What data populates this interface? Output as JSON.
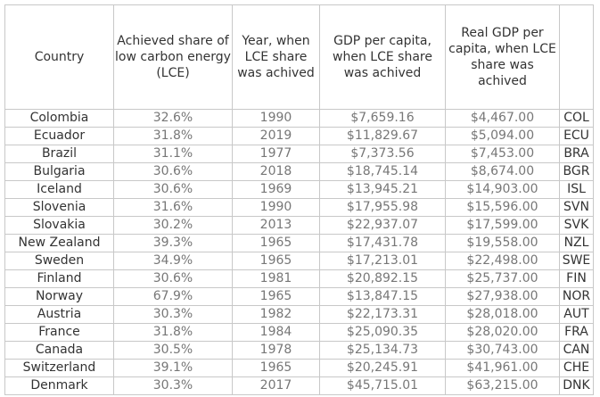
{
  "table": {
    "columns": [
      "Country",
      "Achieved share of low carbon energy (LCE)",
      "Year, when LCE share was achived",
      "GDP per capita, when LCE share was achived",
      "Real GDP per capita, when LCE share was achived",
      ""
    ],
    "rows": [
      {
        "country": "Colombia",
        "share": "32.6%",
        "year": "1990",
        "gdp": "$7,659.16",
        "real_gdp": "$4,467.00",
        "code": "COL"
      },
      {
        "country": "Ecuador",
        "share": "31.8%",
        "year": "2019",
        "gdp": "$11,829.67",
        "real_gdp": "$5,094.00",
        "code": "ECU"
      },
      {
        "country": "Brazil",
        "share": "31.1%",
        "year": "1977",
        "gdp": "$7,373.56",
        "real_gdp": "$7,453.00",
        "code": "BRA"
      },
      {
        "country": "Bulgaria",
        "share": "30.6%",
        "year": "2018",
        "gdp": "$18,745.14",
        "real_gdp": "$8,674.00",
        "code": "BGR"
      },
      {
        "country": "Iceland",
        "share": "30.6%",
        "year": "1969",
        "gdp": "$13,945.21",
        "real_gdp": "$14,903.00",
        "code": "ISL"
      },
      {
        "country": "Slovenia",
        "share": "31.6%",
        "year": "1990",
        "gdp": "$17,955.98",
        "real_gdp": "$15,596.00",
        "code": "SVN"
      },
      {
        "country": "Slovakia",
        "share": "30.2%",
        "year": "2013",
        "gdp": "$22,937.07",
        "real_gdp": "$17,599.00",
        "code": "SVK"
      },
      {
        "country": "New Zealand",
        "share": "39.3%",
        "year": "1965",
        "gdp": "$17,431.78",
        "real_gdp": "$19,558.00",
        "code": "NZL"
      },
      {
        "country": "Sweden",
        "share": "34.9%",
        "year": "1965",
        "gdp": "$17,213.01",
        "real_gdp": "$22,498.00",
        "code": "SWE"
      },
      {
        "country": "Finland",
        "share": "30.6%",
        "year": "1981",
        "gdp": "$20,892.15",
        "real_gdp": "$25,737.00",
        "code": "FIN"
      },
      {
        "country": "Norway",
        "share": "67.9%",
        "year": "1965",
        "gdp": "$13,847.15",
        "real_gdp": "$27,938.00",
        "code": "NOR"
      },
      {
        "country": "Austria",
        "share": "30.3%",
        "year": "1982",
        "gdp": "$22,173.31",
        "real_gdp": "$28,018.00",
        "code": "AUT"
      },
      {
        "country": "France",
        "share": "31.8%",
        "year": "1984",
        "gdp": "$25,090.35",
        "real_gdp": "$28,020.00",
        "code": "FRA"
      },
      {
        "country": "Canada",
        "share": "30.5%",
        "year": "1978",
        "gdp": "$25,134.73",
        "real_gdp": "$30,743.00",
        "code": "CAN"
      },
      {
        "country": "Switzerland",
        "share": "39.1%",
        "year": "1965",
        "gdp": "$20,245.91",
        "real_gdp": "$41,961.00",
        "code": "CHE"
      },
      {
        "country": "Denmark",
        "share": "30.3%",
        "year": "2017",
        "gdp": "$45,715.01",
        "real_gdp": "$63,215.00",
        "code": "DNK"
      }
    ]
  }
}
